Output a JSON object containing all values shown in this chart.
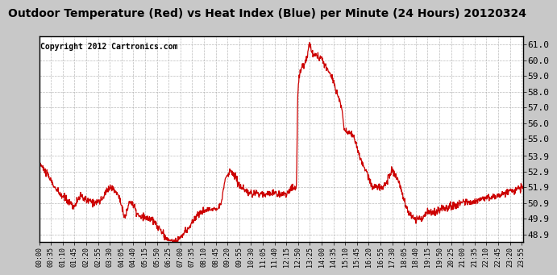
{
  "title": "Outdoor Temperature (Red) vs Heat Index (Blue) per Minute (24 Hours) 20120324",
  "copyright": "Copyright 2012 Cartronics.com",
  "yticks": [
    48.9,
    49.9,
    50.9,
    51.9,
    52.9,
    53.9,
    55.0,
    56.0,
    57.0,
    58.0,
    59.0,
    60.0,
    61.0
  ],
  "ylim": [
    48.4,
    61.5
  ],
  "line_color": "#cc0000",
  "bg_color": "#ffffff",
  "fig_bg_color": "#c8c8c8",
  "grid_color": "#aaaaaa",
  "title_fontsize": 10,
  "copyright_fontsize": 7
}
